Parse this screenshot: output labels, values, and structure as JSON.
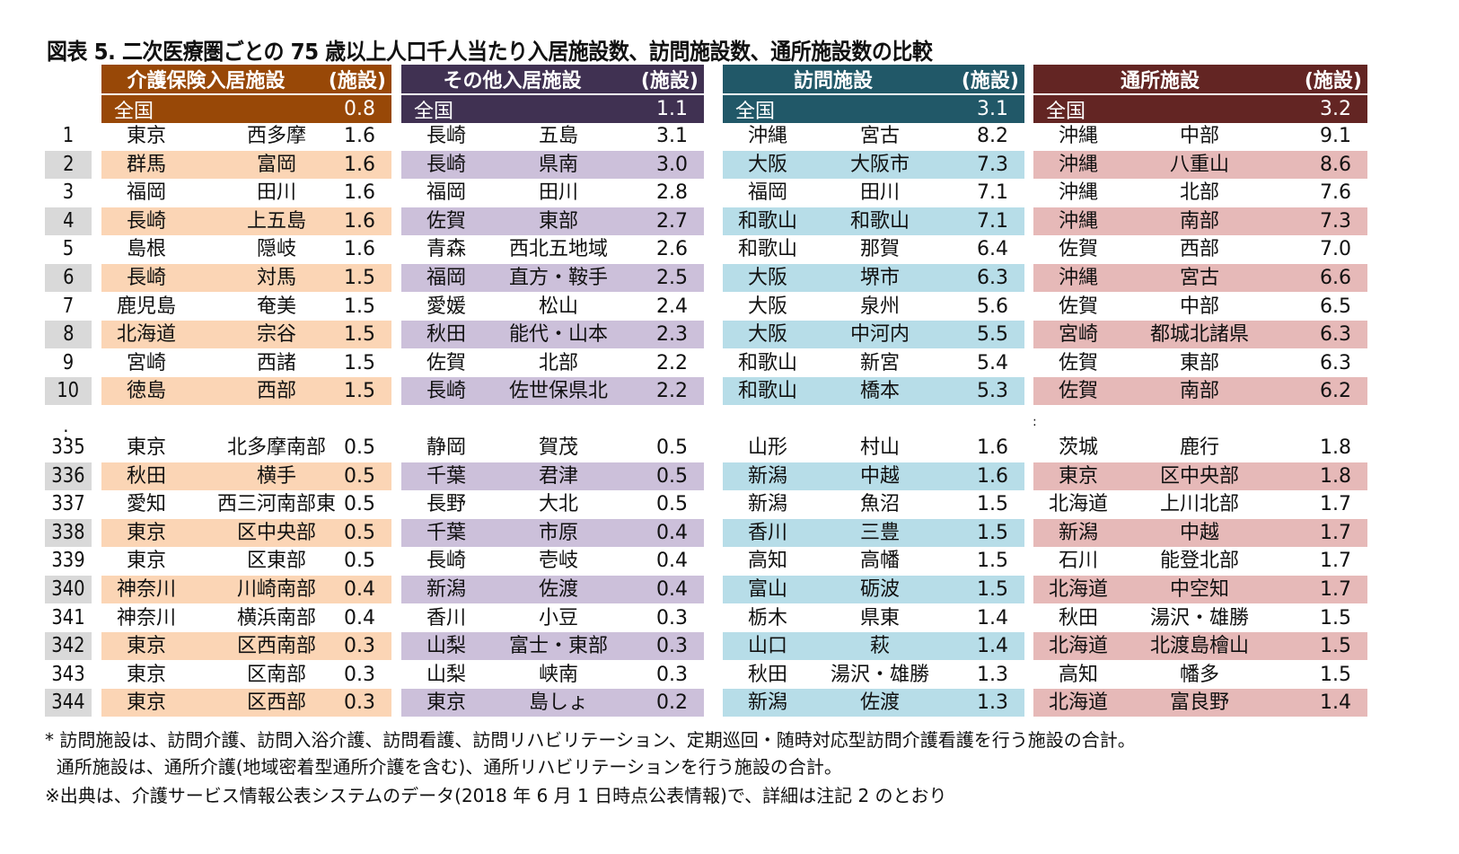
{
  "title": "図表 5.  二次医療圏ごとの 75 歳以上人口千人当たり入居施設数、訪問施設数、通所施設数の比較",
  "ranks_top": [
    "1",
    "2",
    "3",
    "4",
    "5",
    "6",
    "7",
    "8",
    "9",
    "10"
  ],
  "ranks_ellipsis": ":",
  "ranks_bottom": [
    "335",
    "336",
    "337",
    "338",
    "339",
    "340",
    "341",
    "342",
    "343",
    "344"
  ],
  "panels": [
    {
      "name": "介護保険入居施設",
      "unit": "(施設)",
      "header_color": "#984807",
      "shade_color": "#fbd5b5",
      "national_label": "全国",
      "national_value": "0.8",
      "top": [
        [
          "東京",
          "西多摩",
          "1.6"
        ],
        [
          "群馬",
          "富岡",
          "1.6"
        ],
        [
          "福岡",
          "田川",
          "1.6"
        ],
        [
          "長崎",
          "上五島",
          "1.6"
        ],
        [
          "島根",
          "隠岐",
          "1.6"
        ],
        [
          "長崎",
          "対馬",
          "1.5"
        ],
        [
          "鹿児島",
          "奄美",
          "1.5"
        ],
        [
          "北海道",
          "宗谷",
          "1.5"
        ],
        [
          "宮崎",
          "西諸",
          "1.5"
        ],
        [
          "徳島",
          "西部",
          "1.5"
        ]
      ],
      "bottom": [
        [
          "東京",
          "北多摩南部",
          "0.5"
        ],
        [
          "秋田",
          "横手",
          "0.5"
        ],
        [
          "愛知",
          "西三河南部東",
          "0.5"
        ],
        [
          "東京",
          "区中央部",
          "0.5"
        ],
        [
          "東京",
          "区東部",
          "0.5"
        ],
        [
          "神奈川",
          "川崎南部",
          "0.4"
        ],
        [
          "神奈川",
          "横浜南部",
          "0.4"
        ],
        [
          "東京",
          "区西南部",
          "0.3"
        ],
        [
          "東京",
          "区南部",
          "0.3"
        ],
        [
          "東京",
          "区西部",
          "0.3"
        ]
      ]
    },
    {
      "name": "その他入居施設",
      "unit": "(施設)",
      "header_color": "#403152",
      "shade_color": "#ccc0da",
      "national_label": "全国",
      "national_value": "1.1",
      "top": [
        [
          "長崎",
          "五島",
          "3.1"
        ],
        [
          "長崎",
          "県南",
          "3.0"
        ],
        [
          "福岡",
          "田川",
          "2.8"
        ],
        [
          "佐賀",
          "東部",
          "2.7"
        ],
        [
          "青森",
          "西北五地域",
          "2.6"
        ],
        [
          "福岡",
          "直方・鞍手",
          "2.5"
        ],
        [
          "愛媛",
          "松山",
          "2.4"
        ],
        [
          "秋田",
          "能代・山本",
          "2.3"
        ],
        [
          "佐賀",
          "北部",
          "2.2"
        ],
        [
          "長崎",
          "佐世保県北",
          "2.2"
        ]
      ],
      "bottom": [
        [
          "静岡",
          "賀茂",
          "0.5"
        ],
        [
          "千葉",
          "君津",
          "0.5"
        ],
        [
          "長野",
          "大北",
          "0.5"
        ],
        [
          "千葉",
          "市原",
          "0.4"
        ],
        [
          "長崎",
          "壱岐",
          "0.4"
        ],
        [
          "新潟",
          "佐渡",
          "0.4"
        ],
        [
          "香川",
          "小豆",
          "0.3"
        ],
        [
          "山梨",
          "富士・東部",
          "0.3"
        ],
        [
          "山梨",
          "峡南",
          "0.3"
        ],
        [
          "東京",
          "島しょ",
          "0.2"
        ]
      ]
    },
    {
      "name": "訪問施設",
      "unit": "(施設)",
      "header_color": "#215868",
      "shade_color": "#b7dde8",
      "national_label": "全国",
      "national_value": "3.1",
      "top": [
        [
          "沖縄",
          "宮古",
          "8.2"
        ],
        [
          "大阪",
          "大阪市",
          "7.3"
        ],
        [
          "福岡",
          "田川",
          "7.1"
        ],
        [
          "和歌山",
          "和歌山",
          "7.1"
        ],
        [
          "和歌山",
          "那賀",
          "6.4"
        ],
        [
          "大阪",
          "堺市",
          "6.3"
        ],
        [
          "大阪",
          "泉州",
          "5.6"
        ],
        [
          "大阪",
          "中河内",
          "5.5"
        ],
        [
          "和歌山",
          "新宮",
          "5.4"
        ],
        [
          "和歌山",
          "橋本",
          "5.3"
        ]
      ],
      "bottom": [
        [
          "山形",
          "村山",
          "1.6"
        ],
        [
          "新潟",
          "中越",
          "1.6"
        ],
        [
          "新潟",
          "魚沼",
          "1.5"
        ],
        [
          "香川",
          "三豊",
          "1.5"
        ],
        [
          "高知",
          "高幡",
          "1.5"
        ],
        [
          "富山",
          "砺波",
          "1.5"
        ],
        [
          "栃木",
          "県東",
          "1.4"
        ],
        [
          "山口",
          "萩",
          "1.4"
        ],
        [
          "秋田",
          "湯沢・雄勝",
          "1.3"
        ],
        [
          "新潟",
          "佐渡",
          "1.3"
        ]
      ]
    },
    {
      "name": "通所施設",
      "unit": "(施設)",
      "header_color": "#632523",
      "shade_color": "#e6b9b8",
      "national_label": "全国",
      "national_value": "3.2",
      "top": [
        [
          "沖縄",
          "中部",
          "9.1"
        ],
        [
          "沖縄",
          "八重山",
          "8.6"
        ],
        [
          "沖縄",
          "北部",
          "7.6"
        ],
        [
          "沖縄",
          "南部",
          "7.3"
        ],
        [
          "佐賀",
          "西部",
          "7.0"
        ],
        [
          "沖縄",
          "宮古",
          "6.6"
        ],
        [
          "佐賀",
          "中部",
          "6.5"
        ],
        [
          "宮崎",
          "都城北諸県",
          "6.3"
        ],
        [
          "佐賀",
          "東部",
          "6.3"
        ],
        [
          "佐賀",
          "南部",
          "6.2"
        ]
      ],
      "bottom": [
        [
          "茨城",
          "鹿行",
          "1.8"
        ],
        [
          "東京",
          "区中央部",
          "1.8"
        ],
        [
          "北海道",
          "上川北部",
          "1.7"
        ],
        [
          "新潟",
          "中越",
          "1.7"
        ],
        [
          "石川",
          "能登北部",
          "1.7"
        ],
        [
          "北海道",
          "中空知",
          "1.7"
        ],
        [
          "秋田",
          "湯沢・雄勝",
          "1.5"
        ],
        [
          "北海道",
          "北渡島檜山",
          "1.5"
        ],
        [
          "高知",
          "幡多",
          "1.5"
        ],
        [
          "北海道",
          "富良野",
          "1.4"
        ]
      ]
    }
  ],
  "notes": [
    "* 訪問施設は、訪問介護、訪問入浴介護、訪問看護、訪問リハビリテーション、定期巡回・随時対応型訪問介護看護を行う施設の合計。",
    "  通所施設は、通所介護(地域密着型通所介護を含む)、通所リハビリテーションを行う施設の合計。",
    "※出典は、介護サービス情報公表システムのデータ(2018 年 6 月 1 日時点公表情報)で、詳細は注記 2 のとおり"
  ],
  "right_ellipsis": ":"
}
